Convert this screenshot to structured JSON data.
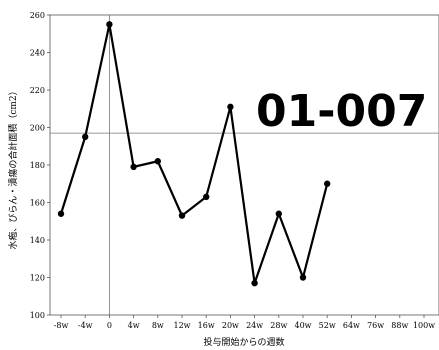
{
  "chart_data": {
    "type": "line",
    "xlabel": "投与開始からの週数",
    "ylabel": "水疱、びらん・潰瘍の合計面積（cm2）",
    "overlay_label": "01-007",
    "categories": [
      "-8w",
      "-4w",
      "0",
      "4w",
      "8w",
      "12w",
      "16w",
      "20w",
      "24w",
      "28w",
      "40w",
      "52w",
      "64w",
      "76w",
      "88w",
      "100w"
    ],
    "ylim": [
      100,
      260
    ],
    "yticks": [
      100,
      120,
      140,
      160,
      180,
      200,
      220,
      240,
      260
    ],
    "reference_line_y": 197,
    "reference_line_x": "0",
    "grid": false,
    "series": [
      {
        "x": [
          "-8w",
          "-4w",
          "0",
          "4w",
          "8w",
          "12w",
          "16w",
          "20w",
          "24w",
          "28w",
          "40w",
          "52w"
        ],
        "values": [
          154,
          195,
          255,
          179,
          182,
          153,
          163,
          211,
          117,
          154,
          120,
          170
        ]
      }
    ]
  }
}
